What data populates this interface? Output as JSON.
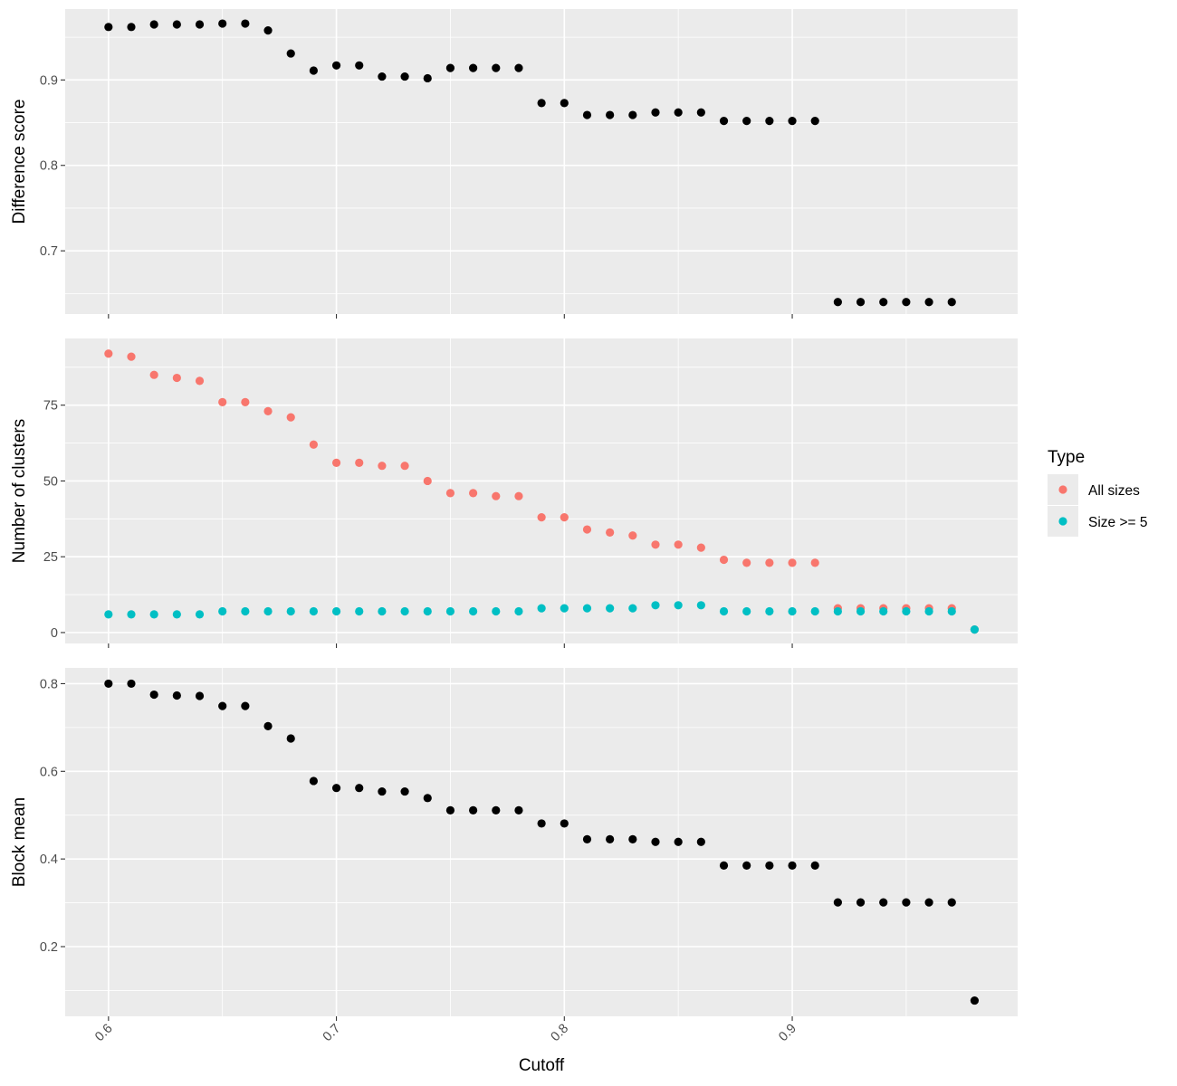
{
  "chart_data": [
    {
      "type": "scatter",
      "ylabel": "Difference score",
      "xlabel": "",
      "xlim": [
        0.581,
        0.9989
      ],
      "ylim": [
        0.626,
        0.983
      ],
      "yticks": [
        0.7,
        0.8,
        0.9
      ],
      "grid": true,
      "series": [
        {
          "color": "#000000",
          "x": [
            0.6,
            0.61,
            0.62,
            0.63,
            0.64,
            0.65,
            0.66,
            0.67,
            0.68,
            0.69,
            0.7,
            0.71,
            0.72,
            0.73,
            0.74,
            0.75,
            0.76,
            0.77,
            0.78,
            0.79,
            0.8,
            0.81,
            0.82,
            0.83,
            0.84,
            0.85,
            0.86,
            0.87,
            0.88,
            0.89,
            0.9,
            0.91,
            0.92,
            0.93,
            0.94,
            0.95,
            0.96,
            0.97
          ],
          "y": [
            0.962,
            0.962,
            0.965,
            0.965,
            0.965,
            0.966,
            0.966,
            0.958,
            0.931,
            0.911,
            0.917,
            0.917,
            0.904,
            0.904,
            0.902,
            0.914,
            0.914,
            0.914,
            0.914,
            0.873,
            0.873,
            0.859,
            0.859,
            0.859,
            0.862,
            0.862,
            0.862,
            0.852,
            0.852,
            0.852,
            0.852,
            0.852,
            0.64,
            0.64,
            0.64,
            0.64,
            0.64,
            0.64
          ]
        }
      ]
    },
    {
      "type": "scatter",
      "ylabel": "Number of clusters",
      "xlabel": "",
      "xlim": [
        0.581,
        0.9989
      ],
      "ylim": [
        -3.6,
        97
      ],
      "yticks": [
        0,
        25,
        50,
        75
      ],
      "grid": true,
      "legend": {
        "title": "Type",
        "placement": "right"
      },
      "series": [
        {
          "name": "All sizes",
          "color": "#F8766D",
          "x": [
            0.6,
            0.61,
            0.62,
            0.63,
            0.64,
            0.65,
            0.66,
            0.67,
            0.68,
            0.69,
            0.7,
            0.71,
            0.72,
            0.73,
            0.74,
            0.75,
            0.76,
            0.77,
            0.78,
            0.79,
            0.8,
            0.81,
            0.82,
            0.83,
            0.84,
            0.85,
            0.86,
            0.87,
            0.88,
            0.89,
            0.9,
            0.91,
            0.92,
            0.93,
            0.94,
            0.95,
            0.96,
            0.97,
            0.98
          ],
          "y": [
            92,
            91,
            85,
            84,
            83,
            76,
            76,
            73,
            71,
            62,
            56,
            56,
            55,
            55,
            50,
            46,
            46,
            45,
            45,
            38,
            38,
            34,
            33,
            32,
            29,
            29,
            28,
            24,
            23,
            23,
            23,
            23,
            8,
            8,
            8,
            8,
            8,
            8,
            1
          ]
        },
        {
          "name": "Size >= 5",
          "color": "#00BFC4",
          "x": [
            0.6,
            0.61,
            0.62,
            0.63,
            0.64,
            0.65,
            0.66,
            0.67,
            0.68,
            0.69,
            0.7,
            0.71,
            0.72,
            0.73,
            0.74,
            0.75,
            0.76,
            0.77,
            0.78,
            0.79,
            0.8,
            0.81,
            0.82,
            0.83,
            0.84,
            0.85,
            0.86,
            0.87,
            0.88,
            0.89,
            0.9,
            0.91,
            0.92,
            0.93,
            0.94,
            0.95,
            0.96,
            0.97,
            0.98
          ],
          "y": [
            6,
            6,
            6,
            6,
            6,
            7,
            7,
            7,
            7,
            7,
            7,
            7,
            7,
            7,
            7,
            7,
            7,
            7,
            7,
            8,
            8,
            8,
            8,
            8,
            9,
            9,
            9,
            7,
            7,
            7,
            7,
            7,
            7,
            7,
            7,
            7,
            7,
            7,
            1
          ]
        }
      ]
    },
    {
      "type": "scatter",
      "ylabel": "Block mean",
      "xlabel": "Cutoff",
      "xlim": [
        0.581,
        0.9989
      ],
      "ylim": [
        0.041,
        0.836
      ],
      "yticks": [
        0.2,
        0.4,
        0.6,
        0.8
      ],
      "xticks": [
        0.6,
        0.7,
        0.8,
        0.9
      ],
      "grid": true,
      "series": [
        {
          "color": "#000000",
          "x": [
            0.6,
            0.61,
            0.62,
            0.63,
            0.64,
            0.65,
            0.66,
            0.67,
            0.68,
            0.69,
            0.7,
            0.71,
            0.72,
            0.73,
            0.74,
            0.75,
            0.76,
            0.77,
            0.78,
            0.79,
            0.8,
            0.81,
            0.82,
            0.83,
            0.84,
            0.85,
            0.86,
            0.87,
            0.88,
            0.89,
            0.9,
            0.91,
            0.92,
            0.93,
            0.94,
            0.95,
            0.96,
            0.97,
            0.98
          ],
          "y": [
            0.8,
            0.8,
            0.775,
            0.773,
            0.772,
            0.749,
            0.749,
            0.703,
            0.675,
            0.578,
            0.562,
            0.562,
            0.554,
            0.554,
            0.539,
            0.511,
            0.511,
            0.511,
            0.511,
            0.481,
            0.481,
            0.445,
            0.445,
            0.445,
            0.439,
            0.439,
            0.439,
            0.385,
            0.385,
            0.385,
            0.385,
            0.385,
            0.301,
            0.301,
            0.301,
            0.301,
            0.301,
            0.301,
            0.077
          ]
        }
      ]
    }
  ]
}
